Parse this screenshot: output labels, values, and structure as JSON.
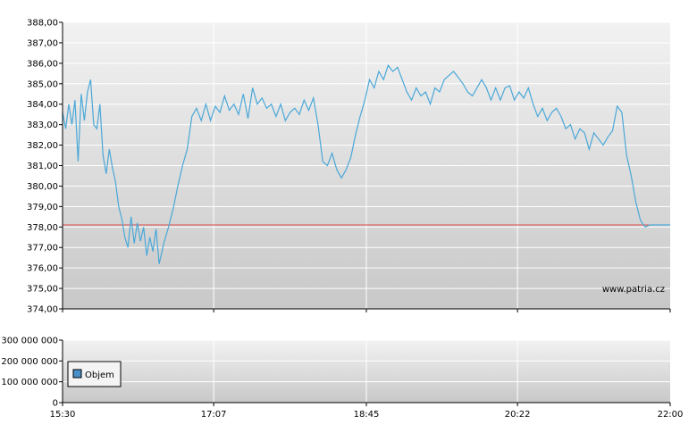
{
  "watermark": "www.patria.cz",
  "legend": {
    "label": "Objem"
  },
  "colors": {
    "line": "#4aa8d8",
    "reference": "#d94a4a",
    "grid": "#ffffff",
    "plot_top": "#f2f2f2",
    "plot_bottom": "#c8c8c8",
    "legend_swatch": "#4a90c8"
  },
  "chart_data": [
    {
      "type": "line",
      "title": "",
      "xlabel": "",
      "ylabel": "",
      "x_ticks": [
        "15:30",
        "17:07",
        "18:45",
        "20:22",
        "22:00"
      ],
      "x_range": [
        "15:30",
        "22:00"
      ],
      "y_ticks": [
        "374,00",
        "375,00",
        "376,00",
        "377,00",
        "378,00",
        "379,00",
        "380,00",
        "381,00",
        "382,00",
        "383,00",
        "384,00",
        "385,00",
        "386,00",
        "387,00",
        "388,00"
      ],
      "ylim": [
        374,
        388
      ],
      "grid": true,
      "reference_line": 378.1,
      "series": [
        {
          "x": [
            "15:30",
            "15:32",
            "15:34",
            "15:36",
            "15:38",
            "15:40",
            "15:42",
            "15:44",
            "15:46",
            "15:48",
            "15:50",
            "15:52",
            "15:54",
            "15:56",
            "15:58",
            "16:00",
            "16:02",
            "16:04",
            "16:06",
            "16:08",
            "16:10",
            "16:12",
            "16:14",
            "16:16",
            "16:18",
            "16:20",
            "16:22",
            "16:24",
            "16:26",
            "16:28",
            "16:30",
            "16:32",
            "16:35",
            "16:38",
            "16:41",
            "16:44",
            "16:47",
            "16:50",
            "16:53",
            "16:56",
            "16:59",
            "17:02",
            "17:05",
            "17:08",
            "17:11",
            "17:14",
            "17:17",
            "17:20",
            "17:23",
            "17:26",
            "17:29",
            "17:32",
            "17:35",
            "17:38",
            "17:41",
            "17:44",
            "17:47",
            "17:50",
            "17:53",
            "17:56",
            "17:59",
            "18:02",
            "18:05",
            "18:08",
            "18:11",
            "18:14",
            "18:17",
            "18:20",
            "18:23",
            "18:26",
            "18:29",
            "18:32",
            "18:35",
            "18:38",
            "18:41",
            "18:44",
            "18:47",
            "18:50",
            "18:53",
            "18:56",
            "18:59",
            "19:02",
            "19:05",
            "19:08",
            "19:11",
            "19:14",
            "19:17",
            "19:20",
            "19:23",
            "19:26",
            "19:29",
            "19:32",
            "19:35",
            "19:38",
            "19:41",
            "19:44",
            "19:47",
            "19:50",
            "19:53",
            "19:56",
            "19:59",
            "20:02",
            "20:05",
            "20:08",
            "20:11",
            "20:14",
            "20:17",
            "20:20",
            "20:23",
            "20:26",
            "20:29",
            "20:32",
            "20:35",
            "20:38",
            "20:41",
            "20:44",
            "20:47",
            "20:50",
            "20:53",
            "20:56",
            "20:59",
            "21:02",
            "21:05",
            "21:08",
            "21:11",
            "21:14",
            "21:17",
            "21:20",
            "21:23",
            "21:26",
            "21:29",
            "21:32",
            "21:35",
            "21:38",
            "21:41",
            "21:44",
            "21:47",
            "21:50",
            "21:53",
            "21:56",
            "21:59",
            "22:00"
          ],
          "values": [
            383.6,
            382.8,
            384.0,
            383.0,
            384.2,
            381.2,
            384.5,
            383.2,
            384.6,
            385.2,
            383.0,
            382.8,
            384.0,
            381.5,
            380.6,
            381.8,
            380.9,
            380.2,
            379.0,
            378.4,
            377.5,
            377.0,
            378.5,
            377.2,
            378.2,
            377.3,
            378.0,
            376.6,
            377.5,
            376.8,
            377.9,
            376.2,
            377.2,
            378.0,
            378.9,
            380.0,
            381.0,
            381.8,
            383.4,
            383.8,
            383.2,
            384.0,
            383.2,
            383.9,
            383.6,
            384.4,
            383.7,
            384.0,
            383.5,
            384.5,
            383.3,
            384.8,
            384.0,
            384.3,
            383.8,
            384.0,
            383.4,
            384.0,
            383.2,
            383.6,
            383.8,
            383.5,
            384.2,
            383.7,
            384.3,
            383.0,
            381.2,
            381.0,
            381.6,
            380.8,
            380.4,
            380.8,
            381.4,
            382.5,
            383.4,
            384.2,
            385.2,
            384.8,
            385.6,
            385.2,
            385.9,
            385.6,
            385.8,
            385.2,
            384.6,
            384.2,
            384.8,
            384.4,
            384.6,
            384.0,
            384.8,
            384.6,
            385.2,
            385.4,
            385.6,
            385.3,
            385.0,
            384.6,
            384.4,
            384.8,
            385.2,
            384.8,
            384.2,
            384.8,
            384.2,
            384.8,
            384.9,
            384.2,
            384.6,
            384.3,
            384.8,
            384.0,
            383.4,
            383.8,
            383.2,
            383.6,
            383.8,
            383.4,
            382.8,
            383.0,
            382.3,
            382.8,
            382.6,
            381.8,
            382.6,
            382.3,
            382.0,
            382.4,
            382.7,
            383.9,
            383.6,
            381.5,
            380.5,
            379.2,
            378.3,
            378.0,
            378.1,
            378.1,
            378.1,
            378.1,
            378.1,
            378.1
          ]
        }
      ]
    },
    {
      "type": "bar",
      "title": "",
      "xlabel": "",
      "ylabel": "",
      "x_ticks": [
        "15:30",
        "17:07",
        "18:45",
        "20:22",
        "22:00"
      ],
      "y_ticks": [
        "0",
        "100 000 000",
        "200 000 000",
        "300 000 000"
      ],
      "ylim": [
        0,
        300000000
      ],
      "grid": true,
      "legend_position": "bottom-left",
      "series": [
        {
          "name": "Objem",
          "values": []
        }
      ]
    }
  ]
}
